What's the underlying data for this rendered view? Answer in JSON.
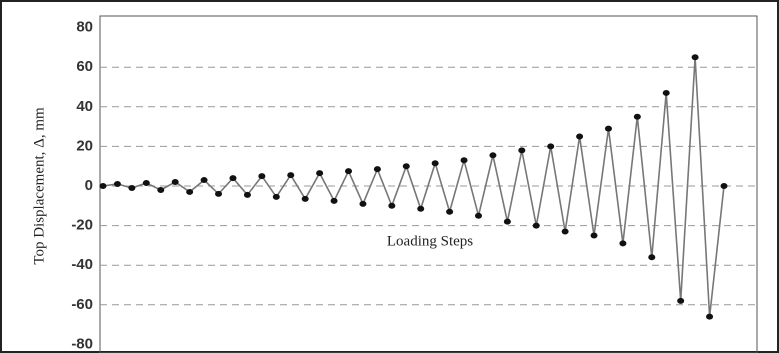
{
  "chart_data": {
    "type": "line",
    "y_label": "Top Displacement, Δ, mm",
    "annotation": "Loading Steps",
    "values": [
      0,
      1,
      -1,
      1.5,
      -2,
      2,
      -3,
      3,
      -4,
      4,
      -4.5,
      5,
      -5.5,
      5.5,
      -6.5,
      6.5,
      -7.5,
      7.5,
      -9,
      8.5,
      -10,
      10,
      -11.5,
      11.5,
      -13,
      13,
      -15,
      15.5,
      -18,
      18,
      -20,
      20,
      -23,
      25,
      -25,
      29,
      -29,
      35,
      -36,
      47,
      -58,
      65,
      -66,
      0
    ],
    "color": "#777777",
    "marker_color": "#111111",
    "ylim": [
      -80,
      80
    ],
    "yticks": [
      -80,
      -60,
      -40,
      -20,
      0,
      20,
      40,
      60,
      80
    ],
    "grid": true
  }
}
